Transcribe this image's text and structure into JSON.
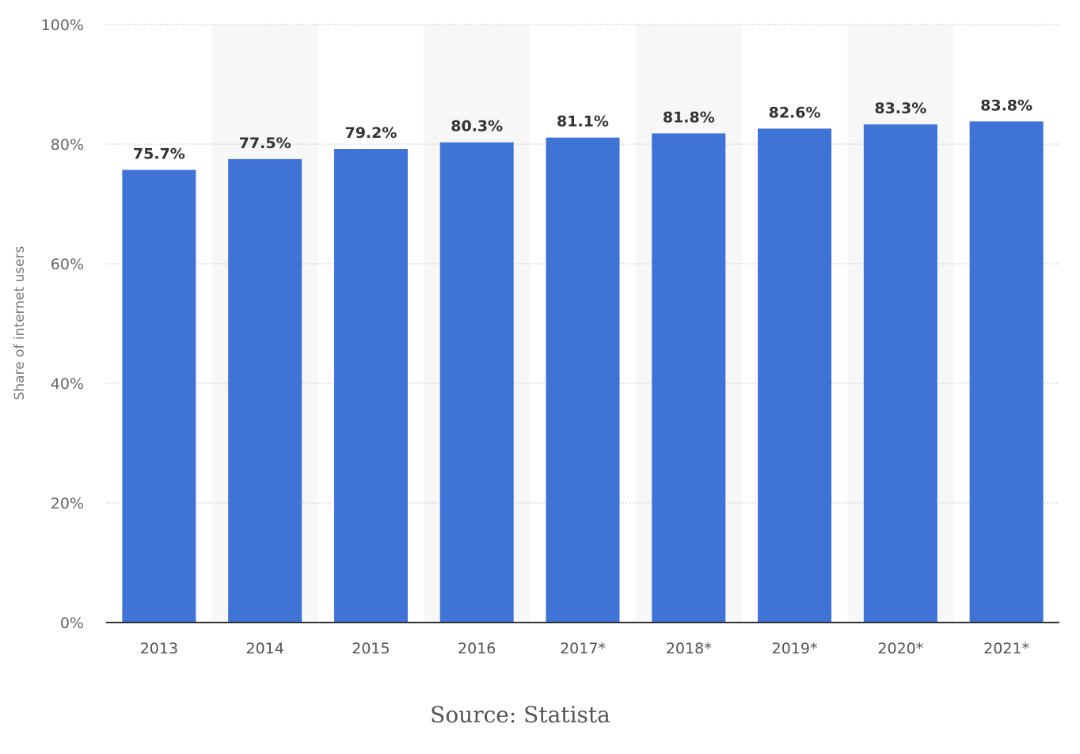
{
  "chart_data": {
    "type": "bar",
    "categories": [
      "2013",
      "2014",
      "2015",
      "2016",
      "2017*",
      "2018*",
      "2019*",
      "2020*",
      "2021*"
    ],
    "values": [
      75.7,
      77.5,
      79.2,
      80.3,
      81.1,
      81.8,
      82.6,
      83.3,
      83.8
    ],
    "value_labels": [
      "75.7%",
      "77.5%",
      "79.2%",
      "80.3%",
      "81.1%",
      "81.8%",
      "82.6%",
      "83.3%",
      "83.8%"
    ],
    "ylabel": "Share of internet users",
    "ylim": [
      0,
      100
    ],
    "yticks": [
      0,
      20,
      40,
      60,
      80,
      100
    ],
    "ytick_labels": [
      "0%",
      "20%",
      "40%",
      "60%",
      "80%",
      "100%"
    ],
    "grid": true,
    "bar_color": "#3f73d6",
    "band_color": "#f7f7f7"
  },
  "source": "Source: Statista"
}
